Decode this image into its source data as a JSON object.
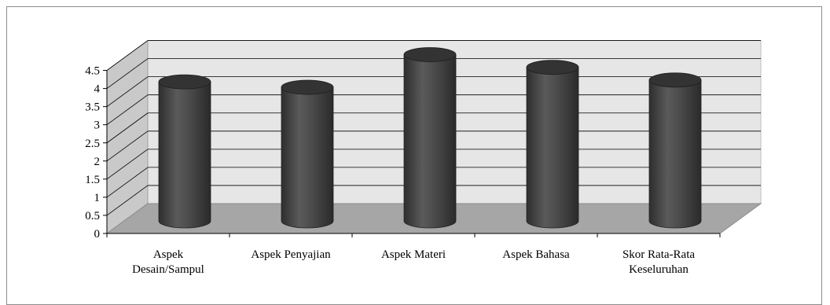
{
  "chart_data": {
    "type": "bar",
    "style": "3d-cylinder",
    "title": "",
    "xlabel": "",
    "ylabel": "",
    "categories": [
      [
        "Aspek",
        "Desain/Sampul"
      ],
      [
        "Aspek Penyajian"
      ],
      [
        "Aspek Materi"
      ],
      [
        "Aspek Bahasa"
      ],
      [
        "Skor Rata-Rata",
        "Keseluruhan"
      ]
    ],
    "values": [
      3.75,
      3.6,
      4.5,
      4.15,
      3.8
    ],
    "ylim": [
      0,
      4.5
    ],
    "yticks": [
      "0",
      "0.5",
      "1",
      "1.5",
      "2",
      "2.5",
      "3",
      "3.5",
      "4",
      "4.5"
    ],
    "grid": true,
    "legend": "none",
    "colors": {
      "bar_body": "#4a4a4a",
      "bar_top": "#333333",
      "back_wall": "#e6e6e6",
      "side_wall": "#c9c9c9",
      "floor": "#a6a6a6",
      "grid": "#000000"
    }
  }
}
